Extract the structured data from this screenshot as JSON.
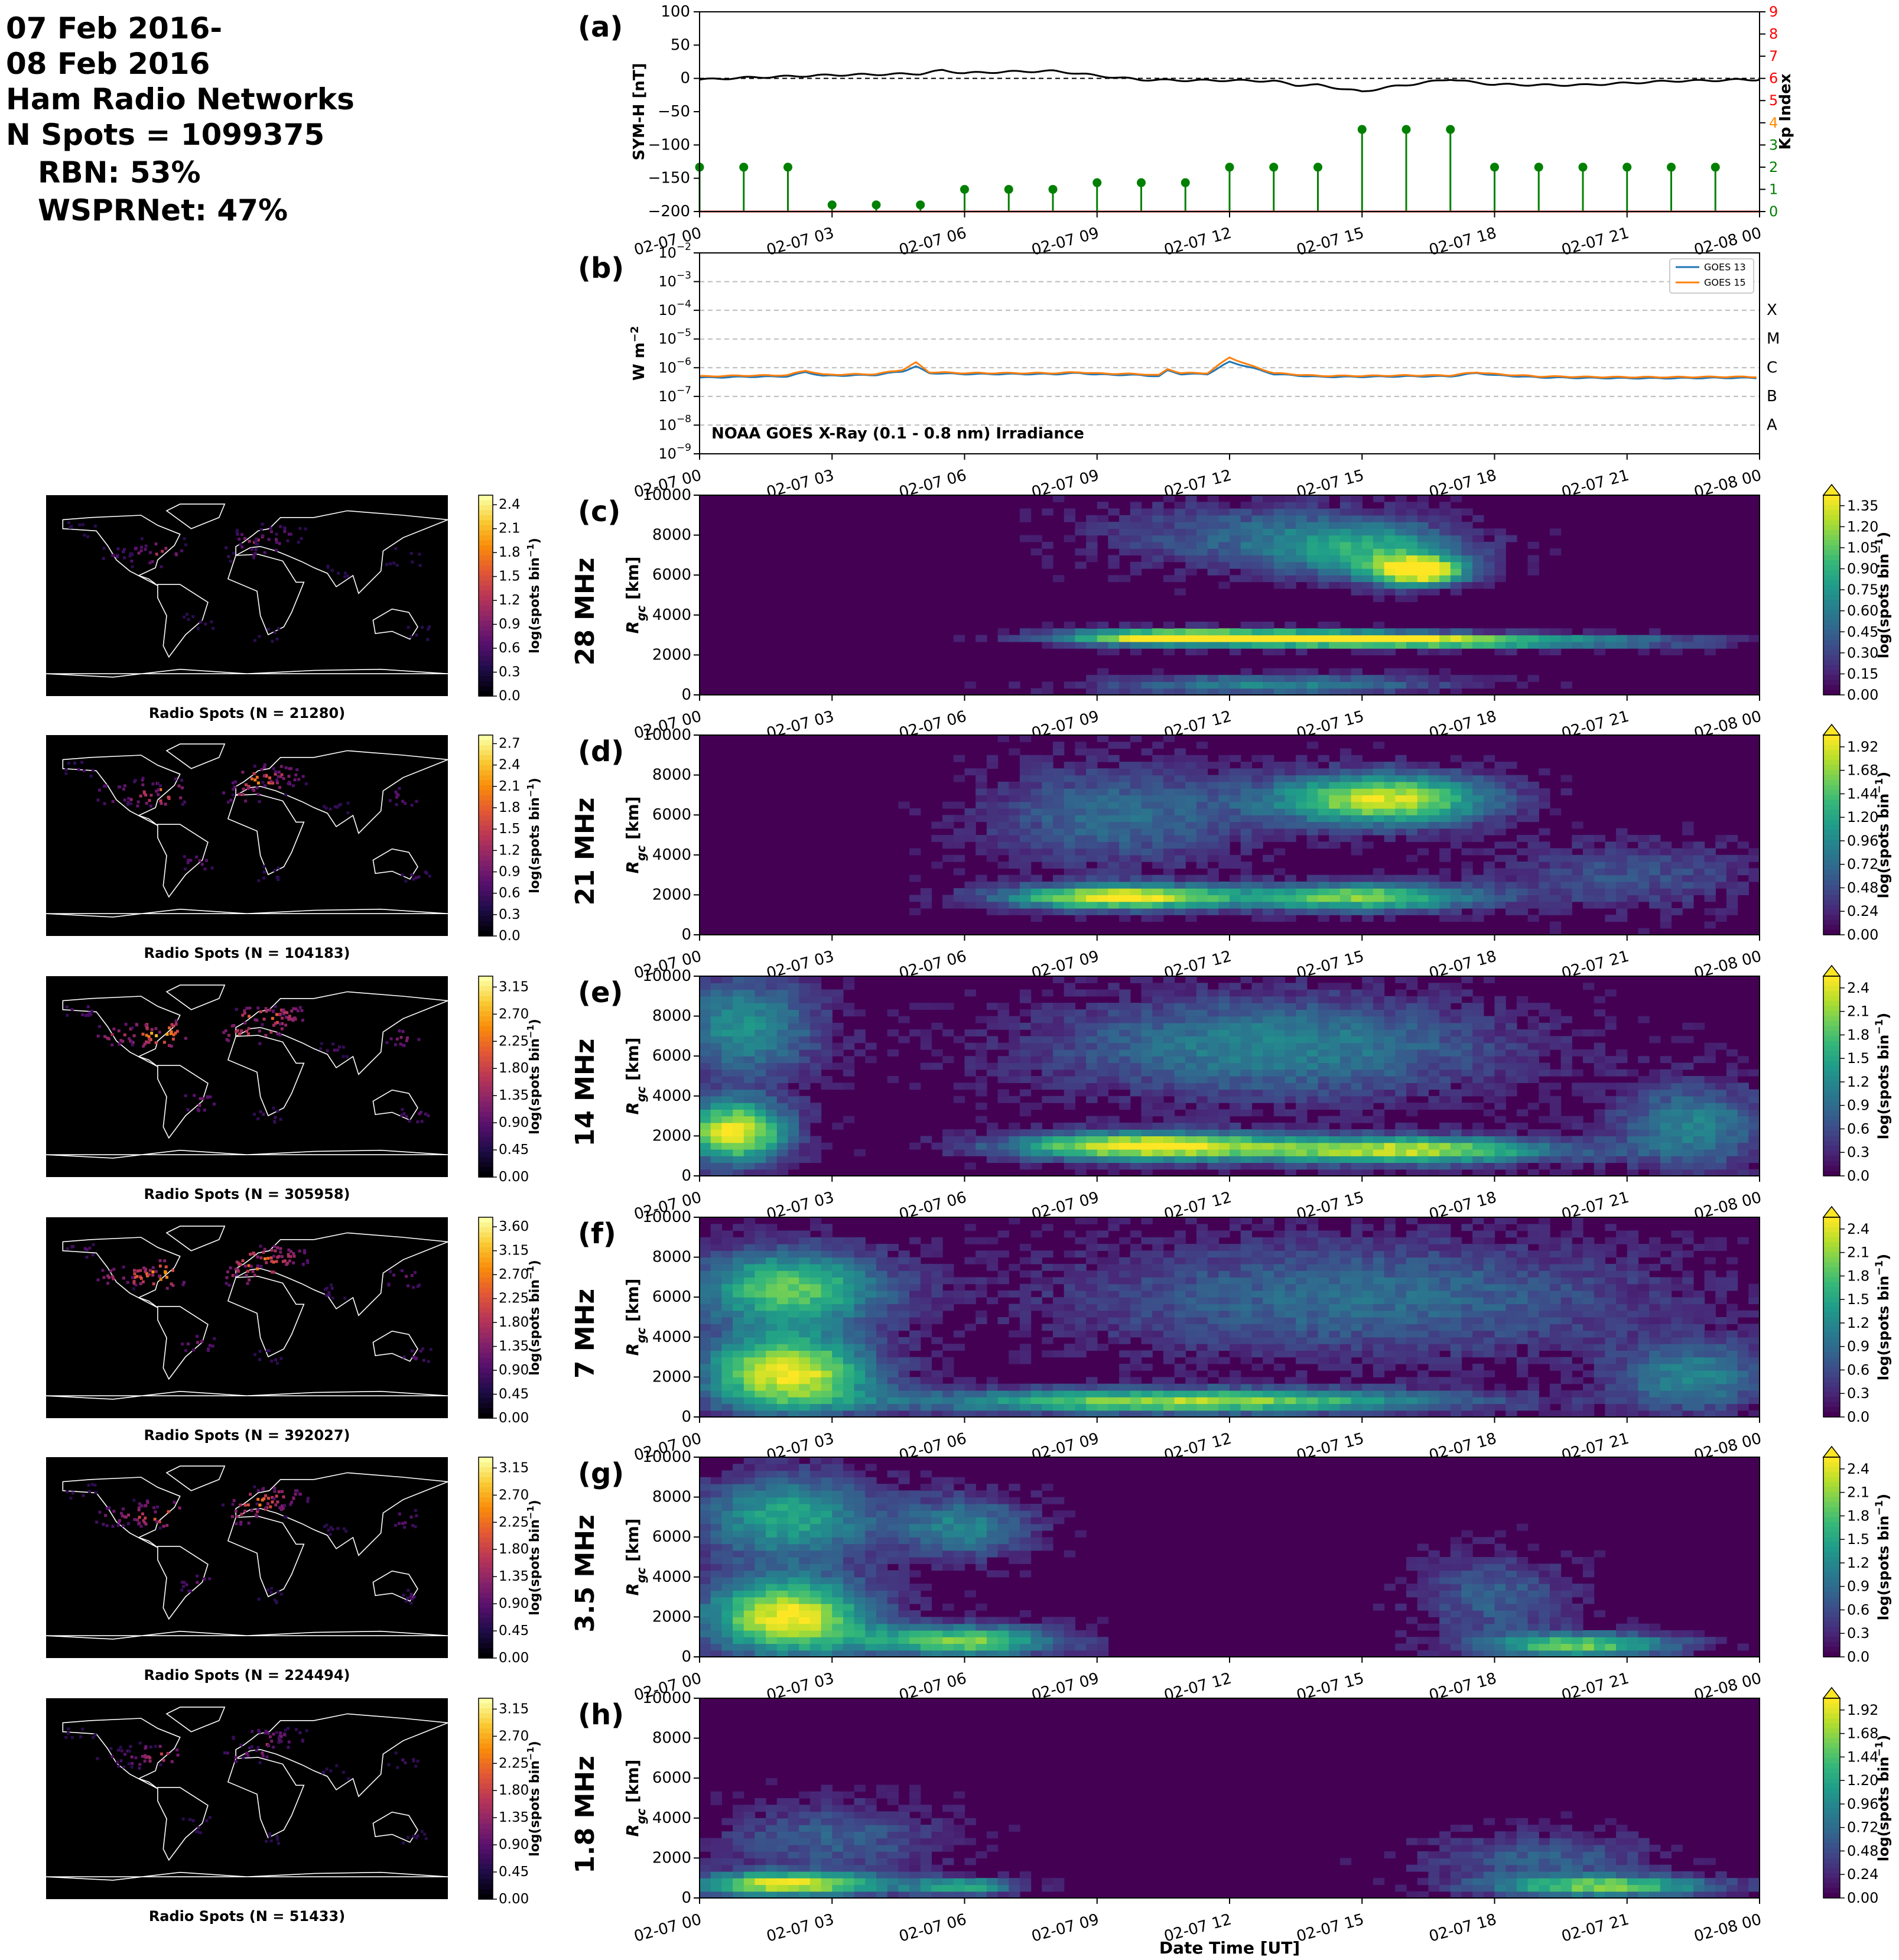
{
  "header": {
    "line1": "07 Feb 2016-",
    "line2": "08 Feb 2016",
    "line3": "Ham Radio Networks",
    "line4": "N Spots = 1099375",
    "line5": "RBN: 53%",
    "line6": "WSPRNet: 47%"
  },
  "colors": {
    "symh_line": "#000000",
    "kp_stems": "#008000",
    "kp_axis_low": "#008000",
    "kp_axis_mid": "#ff8c00",
    "kp_axis_high": "#ff0000",
    "goes13": "#1f77b4",
    "goes15": "#ff7f0e",
    "map_bg": "#000000",
    "viridis_low": "#440154",
    "viridis_high": "#fde725",
    "inferno_low": "#000004",
    "inferno_high": "#fcffa4"
  },
  "time_ticks": [
    "02-07 00",
    "02-07 03",
    "02-07 06",
    "02-07 09",
    "02-07 12",
    "02-07 15",
    "02-07 18",
    "02-07 21",
    "02-08 00"
  ],
  "chart_data": [
    {
      "id": "a",
      "panel_label": "(a)",
      "type": "line",
      "ylabel": "SYM-H [nT]",
      "y2label": "Kp Index",
      "ylim": [
        -200,
        100
      ],
      "yticks": [
        "100",
        "50",
        "0",
        "−50",
        "−100",
        "−150",
        "−200"
      ],
      "y2lim": [
        0,
        9
      ],
      "y2ticks": [
        "0",
        "1",
        "2",
        "3",
        "4",
        "5",
        "6",
        "7",
        "8",
        "9"
      ],
      "xlim_hours": [
        0,
        24
      ],
      "series": [
        {
          "kind": "line",
          "x_hours": [
            0,
            1,
            2,
            3,
            4,
            5,
            5.5,
            6,
            7,
            8,
            8.5,
            9,
            10,
            11,
            12,
            13,
            13.5,
            14,
            15,
            15.5,
            16,
            17,
            17.5,
            18,
            19,
            20,
            21,
            22,
            23,
            23.5,
            24
          ],
          "values": [
            -2,
            1,
            3,
            5,
            6,
            7,
            12,
            8,
            10,
            11,
            8,
            4,
            -2,
            -3,
            -3,
            -4,
            -10,
            -10,
            -20,
            -14,
            -10,
            -1,
            -6,
            -9,
            -10,
            -10,
            -7,
            -4,
            -3,
            -2,
            -2
          ]
        },
        {
          "kind": "stem",
          "axis": "kp",
          "x_hours": [
            0,
            1,
            2,
            3,
            4,
            5,
            6,
            7,
            8,
            9,
            10,
            11,
            12,
            13,
            14,
            15,
            16,
            17,
            18,
            19,
            20,
            21,
            22,
            23
          ],
          "values": [
            2.0,
            2.0,
            2.0,
            0.3,
            0.3,
            0.3,
            1.0,
            1.0,
            1.0,
            1.3,
            1.3,
            1.3,
            2.0,
            2.0,
            2.0,
            3.7,
            3.7,
            3.7,
            2.0,
            2.0,
            2.0,
            2.0,
            2.0,
            2.0
          ]
        }
      ]
    },
    {
      "id": "b",
      "panel_label": "(b)",
      "type": "line",
      "ylabel": "W m^-2",
      "y_scale": "log",
      "ylim": [
        1e-09,
        0.01
      ],
      "yticks": [
        "10^-9",
        "10^-8",
        "10^-7",
        "10^-6",
        "10^-5",
        "10^-4",
        "10^-3",
        "10^-2"
      ],
      "class_labels": [
        "A",
        "B",
        "C",
        "M",
        "X"
      ],
      "annotation": "NOAA GOES X-Ray (0.1 - 0.8 nm) Irradiance",
      "legend_position": "top-right",
      "series": [
        {
          "name": "GOES 13",
          "x_hours": [
            0,
            1,
            2,
            2.4,
            2.8,
            4,
            4.6,
            4.9,
            5.2,
            6,
            7,
            8.1,
            8.6,
            9,
            10,
            10.4,
            10.6,
            10.9,
            11.5,
            12,
            12.4,
            13,
            14,
            15,
            16,
            17,
            17.6,
            18,
            19,
            20,
            21,
            22,
            23,
            24
          ],
          "values": [
            4.5e-07,
            4.8e-07,
            5e-07,
            7e-07,
            5.2e-07,
            5.6e-07,
            7.5e-07,
            1.1e-06,
            6.5e-07,
            6e-07,
            6e-07,
            6e-07,
            6.5e-07,
            5.8e-07,
            5.5e-07,
            5e-07,
            8e-07,
            6e-07,
            6e-07,
            1.6e-06,
            1.1e-06,
            6e-07,
            4.8e-07,
            4.8e-07,
            5e-07,
            5e-07,
            6.5e-07,
            5.5e-07,
            4.6e-07,
            4.4e-07,
            4.3e-07,
            4.3e-07,
            4.4e-07,
            4.4e-07
          ]
        },
        {
          "name": "GOES 15",
          "x_hours": [
            0,
            1,
            2,
            2.4,
            2.8,
            4,
            4.6,
            4.9,
            5.2,
            6,
            7,
            8.1,
            8.6,
            9,
            10,
            10.4,
            10.6,
            10.9,
            11.5,
            12,
            12.4,
            13,
            14,
            15,
            16,
            17,
            17.6,
            18,
            19,
            20,
            21,
            22,
            23,
            24
          ],
          "values": [
            5e-07,
            5.3e-07,
            5.5e-07,
            8e-07,
            5.7e-07,
            6e-07,
            8.5e-07,
            1.5e-06,
            7e-07,
            6.5e-07,
            6.5e-07,
            6.5e-07,
            7e-07,
            6.3e-07,
            6e-07,
            5.5e-07,
            9e-07,
            6.5e-07,
            6.5e-07,
            2.3e-06,
            1.3e-06,
            6.5e-07,
            5.2e-07,
            5.2e-07,
            5.4e-07,
            5.4e-07,
            7e-07,
            6e-07,
            5e-07,
            4.8e-07,
            4.7e-07,
            4.7e-07,
            4.8e-07,
            4.8e-07
          ]
        }
      ]
    },
    {
      "id": "c",
      "panel_label": "(c)",
      "band_label": "28 MHz",
      "type": "heatmap",
      "ylabel": "R_gc [km]",
      "ylim": [
        0,
        10000
      ],
      "yticks": [
        "0",
        "2000",
        "4000",
        "6000",
        "8000",
        "10000"
      ],
      "colorbar_label": "log(spots bin^-1)",
      "colorbar_ticks": [
        "1.35",
        "1.20",
        "1.05",
        "0.90",
        "0.75",
        "0.60",
        "0.45",
        "0.30",
        "0.15",
        "0.00"
      ],
      "features": [
        {
          "t": 10.5,
          "r": 2900,
          "dt": 2.8,
          "dr": 450,
          "v": 0.95
        },
        {
          "t": 17.0,
          "r": 2700,
          "dt": 5.5,
          "dr": 400,
          "v": 0.85
        },
        {
          "t": 14.0,
          "r": 2900,
          "dt": 3.0,
          "dr": 400,
          "v": 0.7
        },
        {
          "t": 16.3,
          "r": 6200,
          "dt": 1.2,
          "dr": 800,
          "v": 1.0
        },
        {
          "t": 15.3,
          "r": 7200,
          "dt": 2.5,
          "dr": 1600,
          "v": 0.5
        },
        {
          "t": 12.5,
          "r": 8000,
          "dt": 4.0,
          "dr": 2000,
          "v": 0.3
        },
        {
          "t": 13.0,
          "r": 500,
          "dt": 4.5,
          "dr": 600,
          "v": 0.45
        }
      ],
      "map": {
        "caption": "Radio Spots (N = 21280)",
        "colorbar_ticks": [
          "2.4",
          "2.1",
          "1.8",
          "1.5",
          "1.2",
          "0.9",
          "0.6",
          "0.3",
          "0.0"
        ],
        "intensity": 0.45
      }
    },
    {
      "id": "d",
      "panel_label": "(d)",
      "band_label": "21 MHz",
      "type": "heatmap",
      "ylabel": "R_gc [km]",
      "ylim": [
        0,
        10000
      ],
      "yticks": [
        "0",
        "2000",
        "4000",
        "6000",
        "8000",
        "10000"
      ],
      "colorbar_label": "log(spots bin^-1)",
      "colorbar_ticks": [
        "1.92",
        "1.68",
        "1.44",
        "1.20",
        "0.96",
        "0.72",
        "0.48",
        "0.24",
        "0.00"
      ],
      "features": [
        {
          "t": 9.5,
          "r": 1900,
          "dt": 3.0,
          "dr": 700,
          "v": 1.0
        },
        {
          "t": 15.0,
          "r": 1900,
          "dt": 3.0,
          "dr": 800,
          "v": 0.8
        },
        {
          "t": 15.5,
          "r": 6800,
          "dt": 2.8,
          "dr": 1500,
          "v": 0.95
        },
        {
          "t": 9.5,
          "r": 6000,
          "dt": 3.5,
          "dr": 3000,
          "v": 0.35
        },
        {
          "t": 21.0,
          "r": 3000,
          "dt": 3.5,
          "dr": 2000,
          "v": 0.25
        }
      ],
      "map": {
        "caption": "Radio Spots (N = 104183)",
        "colorbar_ticks": [
          "2.7",
          "2.4",
          "2.1",
          "1.8",
          "1.5",
          "1.2",
          "0.9",
          "0.6",
          "0.3",
          "0.0"
        ],
        "intensity": 0.7
      }
    },
    {
      "id": "e",
      "panel_label": "(e)",
      "band_label": "14 MHz",
      "type": "heatmap",
      "ylabel": "R_gc [km]",
      "ylim": [
        0,
        10000
      ],
      "yticks": [
        "0",
        "2000",
        "4000",
        "6000",
        "8000",
        "10000"
      ],
      "colorbar_label": "log(spots bin^-1)",
      "colorbar_ticks": [
        "2.4",
        "2.1",
        "1.8",
        "1.5",
        "1.2",
        "0.9",
        "0.6",
        "0.3",
        "0.0"
      ],
      "features": [
        {
          "t": 0.8,
          "r": 2200,
          "dt": 1.4,
          "dr": 1800,
          "v": 1.0
        },
        {
          "t": 10.0,
          "r": 1500,
          "dt": 3.5,
          "dr": 800,
          "v": 1.0
        },
        {
          "t": 16.0,
          "r": 1300,
          "dt": 4.0,
          "dr": 800,
          "v": 0.9
        },
        {
          "t": 13.0,
          "r": 6500,
          "dt": 6.0,
          "dr": 3000,
          "v": 0.45
        },
        {
          "t": 1.0,
          "r": 7500,
          "dt": 2.0,
          "dr": 3000,
          "v": 0.5
        },
        {
          "t": 22.5,
          "r": 2500,
          "dt": 2.0,
          "dr": 2500,
          "v": 0.45
        }
      ],
      "map": {
        "caption": "Radio Spots (N = 305958)",
        "colorbar_ticks": [
          "3.15",
          "2.70",
          "2.25",
          "1.80",
          "1.35",
          "0.90",
          "0.45",
          "0.00"
        ],
        "intensity": 0.85
      }
    },
    {
      "id": "f",
      "panel_label": "(f)",
      "band_label": "7 MHz",
      "type": "heatmap",
      "ylabel": "R_gc [km]",
      "ylim": [
        0,
        10000
      ],
      "yticks": [
        "0",
        "2000",
        "4000",
        "6000",
        "8000",
        "10000"
      ],
      "colorbar_label": "log(spots bin^-1)",
      "colorbar_ticks": [
        "2.4",
        "2.1",
        "1.8",
        "1.5",
        "1.2",
        "0.9",
        "0.6",
        "0.3",
        "0.0"
      ],
      "features": [
        {
          "t": 2.0,
          "r": 2200,
          "dt": 2.2,
          "dr": 2200,
          "v": 1.0
        },
        {
          "t": 2.0,
          "r": 6500,
          "dt": 2.5,
          "dr": 2200,
          "v": 0.75
        },
        {
          "t": 11.0,
          "r": 800,
          "dt": 7.0,
          "dr": 700,
          "v": 0.85
        },
        {
          "t": 15.0,
          "r": 6000,
          "dt": 8.0,
          "dr": 3500,
          "v": 0.35
        },
        {
          "t": 22.5,
          "r": 2000,
          "dt": 2.0,
          "dr": 2000,
          "v": 0.45
        }
      ],
      "map": {
        "caption": "Radio Spots (N = 392027)",
        "colorbar_ticks": [
          "3.60",
          "3.15",
          "2.70",
          "2.25",
          "1.80",
          "1.35",
          "0.90",
          "0.45",
          "0.00"
        ],
        "intensity": 0.8
      }
    },
    {
      "id": "g",
      "panel_label": "(g)",
      "band_label": "3.5 MHz",
      "type": "heatmap",
      "ylabel": "R_gc [km]",
      "ylim": [
        0,
        10000
      ],
      "yticks": [
        "0",
        "2000",
        "4000",
        "6000",
        "8000",
        "10000"
      ],
      "colorbar_label": "log(spots bin^-1)",
      "colorbar_ticks": [
        "2.4",
        "2.1",
        "1.8",
        "1.5",
        "1.2",
        "0.9",
        "0.6",
        "0.3",
        "0.0"
      ],
      "features": [
        {
          "t": 2.0,
          "r": 2000,
          "dt": 2.2,
          "dr": 2200,
          "v": 1.0
        },
        {
          "t": 2.0,
          "r": 7000,
          "dt": 2.3,
          "dr": 2500,
          "v": 0.6
        },
        {
          "t": 6.0,
          "r": 6500,
          "dt": 1.8,
          "dr": 1800,
          "v": 0.45
        },
        {
          "t": 6.0,
          "r": 800,
          "dt": 2.5,
          "dr": 900,
          "v": 0.8
        },
        {
          "t": 20.0,
          "r": 600,
          "dt": 2.5,
          "dr": 700,
          "v": 0.75
        },
        {
          "t": 18.0,
          "r": 3000,
          "dt": 2.0,
          "dr": 2500,
          "v": 0.3
        }
      ],
      "map": {
        "caption": "Radio Spots (N = 224494)",
        "colorbar_ticks": [
          "3.15",
          "2.70",
          "2.25",
          "1.80",
          "1.35",
          "0.90",
          "0.45",
          "0.00"
        ],
        "intensity": 0.7
      }
    },
    {
      "id": "h",
      "panel_label": "(h)",
      "band_label": "1.8 MHz",
      "type": "heatmap",
      "ylabel": "R_gc [km]",
      "ylim": [
        0,
        10000
      ],
      "yticks": [
        "0",
        "2000",
        "4000",
        "6000",
        "8000",
        "10000"
      ],
      "colorbar_label": "log(spots bin^-1)",
      "colorbar_ticks": [
        "1.92",
        "1.68",
        "1.44",
        "1.20",
        "0.96",
        "0.72",
        "0.48",
        "0.24",
        "0.00"
      ],
      "features": [
        {
          "t": 2.0,
          "r": 700,
          "dt": 2.5,
          "dr": 700,
          "v": 0.95
        },
        {
          "t": 6.0,
          "r": 600,
          "dt": 1.5,
          "dr": 500,
          "v": 0.6
        },
        {
          "t": 20.5,
          "r": 600,
          "dt": 3.0,
          "dr": 600,
          "v": 0.75
        },
        {
          "t": 3.0,
          "r": 3000,
          "dt": 3.0,
          "dr": 2000,
          "v": 0.3
        },
        {
          "t": 19.0,
          "r": 2000,
          "dt": 3.0,
          "dr": 1500,
          "v": 0.3
        }
      ],
      "map": {
        "caption": "Radio Spots (N = 51433)",
        "colorbar_ticks": [
          "3.15",
          "2.70",
          "2.25",
          "1.80",
          "1.35",
          "0.90",
          "0.45",
          "0.00"
        ],
        "intensity": 0.5
      }
    }
  ],
  "xlabel": "Date Time [UT]"
}
